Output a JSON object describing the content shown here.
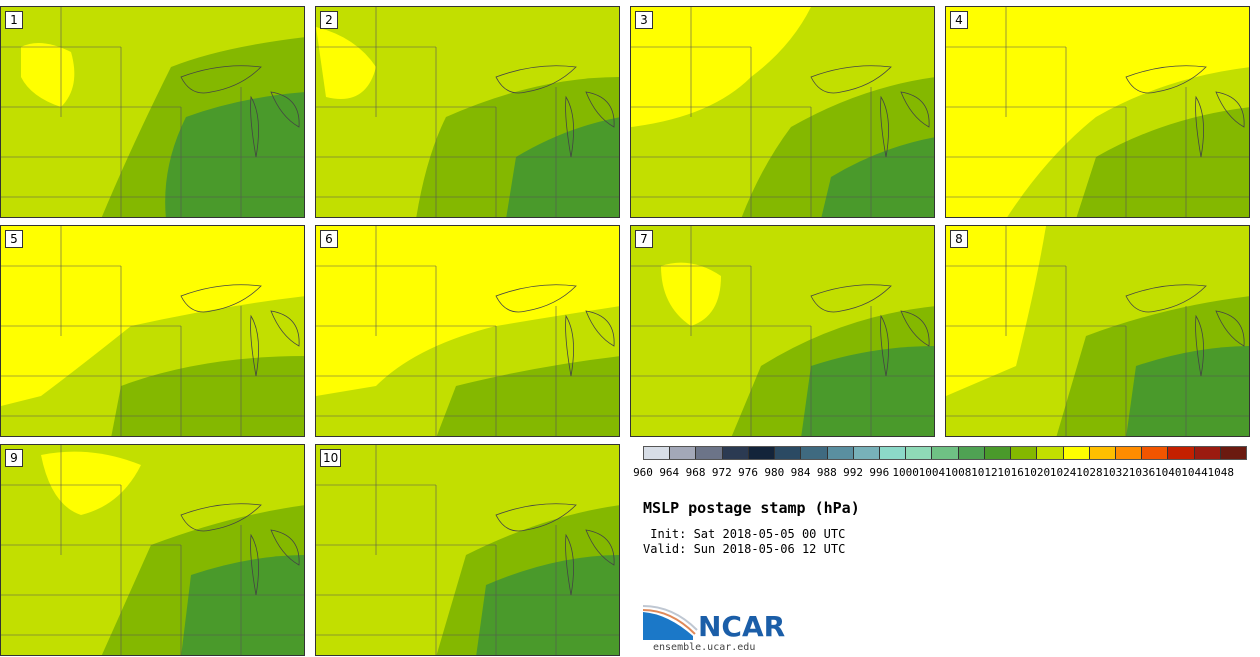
{
  "panels": [
    {
      "label": "1",
      "pattern": "p1"
    },
    {
      "label": "2",
      "pattern": "p2"
    },
    {
      "label": "3",
      "pattern": "p3"
    },
    {
      "label": "4",
      "pattern": "p4"
    },
    {
      "label": "5",
      "pattern": "p5"
    },
    {
      "label": "6",
      "pattern": "p6"
    },
    {
      "label": "7",
      "pattern": "p7"
    },
    {
      "label": "8",
      "pattern": "p8"
    },
    {
      "label": "9",
      "pattern": "p9"
    },
    {
      "label": "10",
      "pattern": "p10"
    }
  ],
  "colorbar": {
    "colors": [
      "#d7dde6",
      "#a3a8b8",
      "#6c7488",
      "#2b3a52",
      "#13243a",
      "#2b4a63",
      "#3f6a80",
      "#5a8fa0",
      "#78b1b9",
      "#8cd9c8",
      "#8fdab7",
      "#6fc184",
      "#4fa253",
      "#4a9a2b",
      "#84b800",
      "#c2df00",
      "#ffff00",
      "#ffbf00",
      "#ff8c00",
      "#f25500",
      "#c42000",
      "#9b1b10",
      "#6b1a10"
    ],
    "tick_labels": [
      "960",
      "964",
      "968",
      "972",
      "976",
      "980",
      "984",
      "988",
      "992",
      "996",
      "1000",
      "1004",
      "1008",
      "1012",
      "1016",
      "1020",
      "1024",
      "1028",
      "1032",
      "1036",
      "1040",
      "1044",
      "1048"
    ]
  },
  "title": "MSLP postage stamp (hPa)",
  "init_text": " Init: Sat 2018-05-05 00 UTC",
  "valid_text": "Valid: Sun 2018-05-06 12 UTC",
  "logo_text": "NCAR",
  "url_text": "ensemble.ucar.edu"
}
